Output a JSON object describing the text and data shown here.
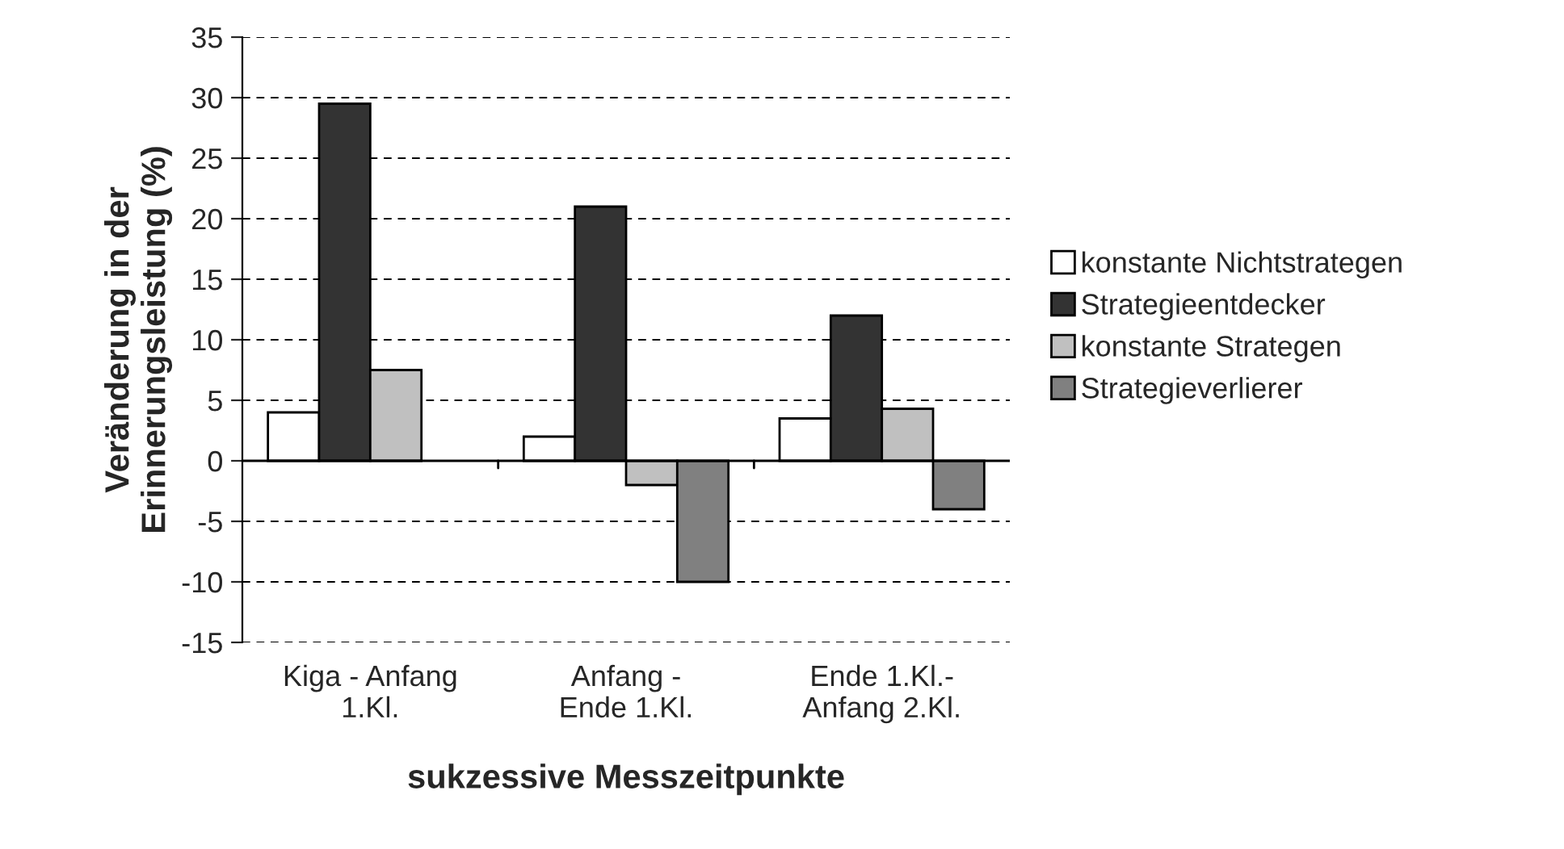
{
  "chart_data": {
    "type": "bar",
    "categories": [
      "Kiga - Anfang\n1.Kl.",
      "Anfang -\nEnde 1.Kl.",
      "Ende 1.Kl.-\nAnfang 2.Kl."
    ],
    "series": [
      {
        "name": "konstante Nichtstrategen",
        "color": "#ffffff",
        "values": [
          4,
          2,
          3.5
        ]
      },
      {
        "name": "Strategieentdecker",
        "color": "#333333",
        "values": [
          29.5,
          21,
          12
        ]
      },
      {
        "name": "konstante Strategen",
        "color": "#c0c0c0",
        "values": [
          7.5,
          -2,
          4.3
        ]
      },
      {
        "name": "Strategieverlierer",
        "color": "#808080",
        "values": [
          null,
          -10,
          -4
        ]
      }
    ],
    "xlabel": "sukzessive Messzeitpunkte",
    "ylabel": "Veränderung in der\nErinnerungsleistung (%)",
    "ylim": [
      -15,
      35
    ],
    "yticks": [
      -15,
      -10,
      -5,
      0,
      5,
      10,
      15,
      20,
      25,
      30,
      35
    ],
    "grid": "y",
    "legend": "right"
  }
}
